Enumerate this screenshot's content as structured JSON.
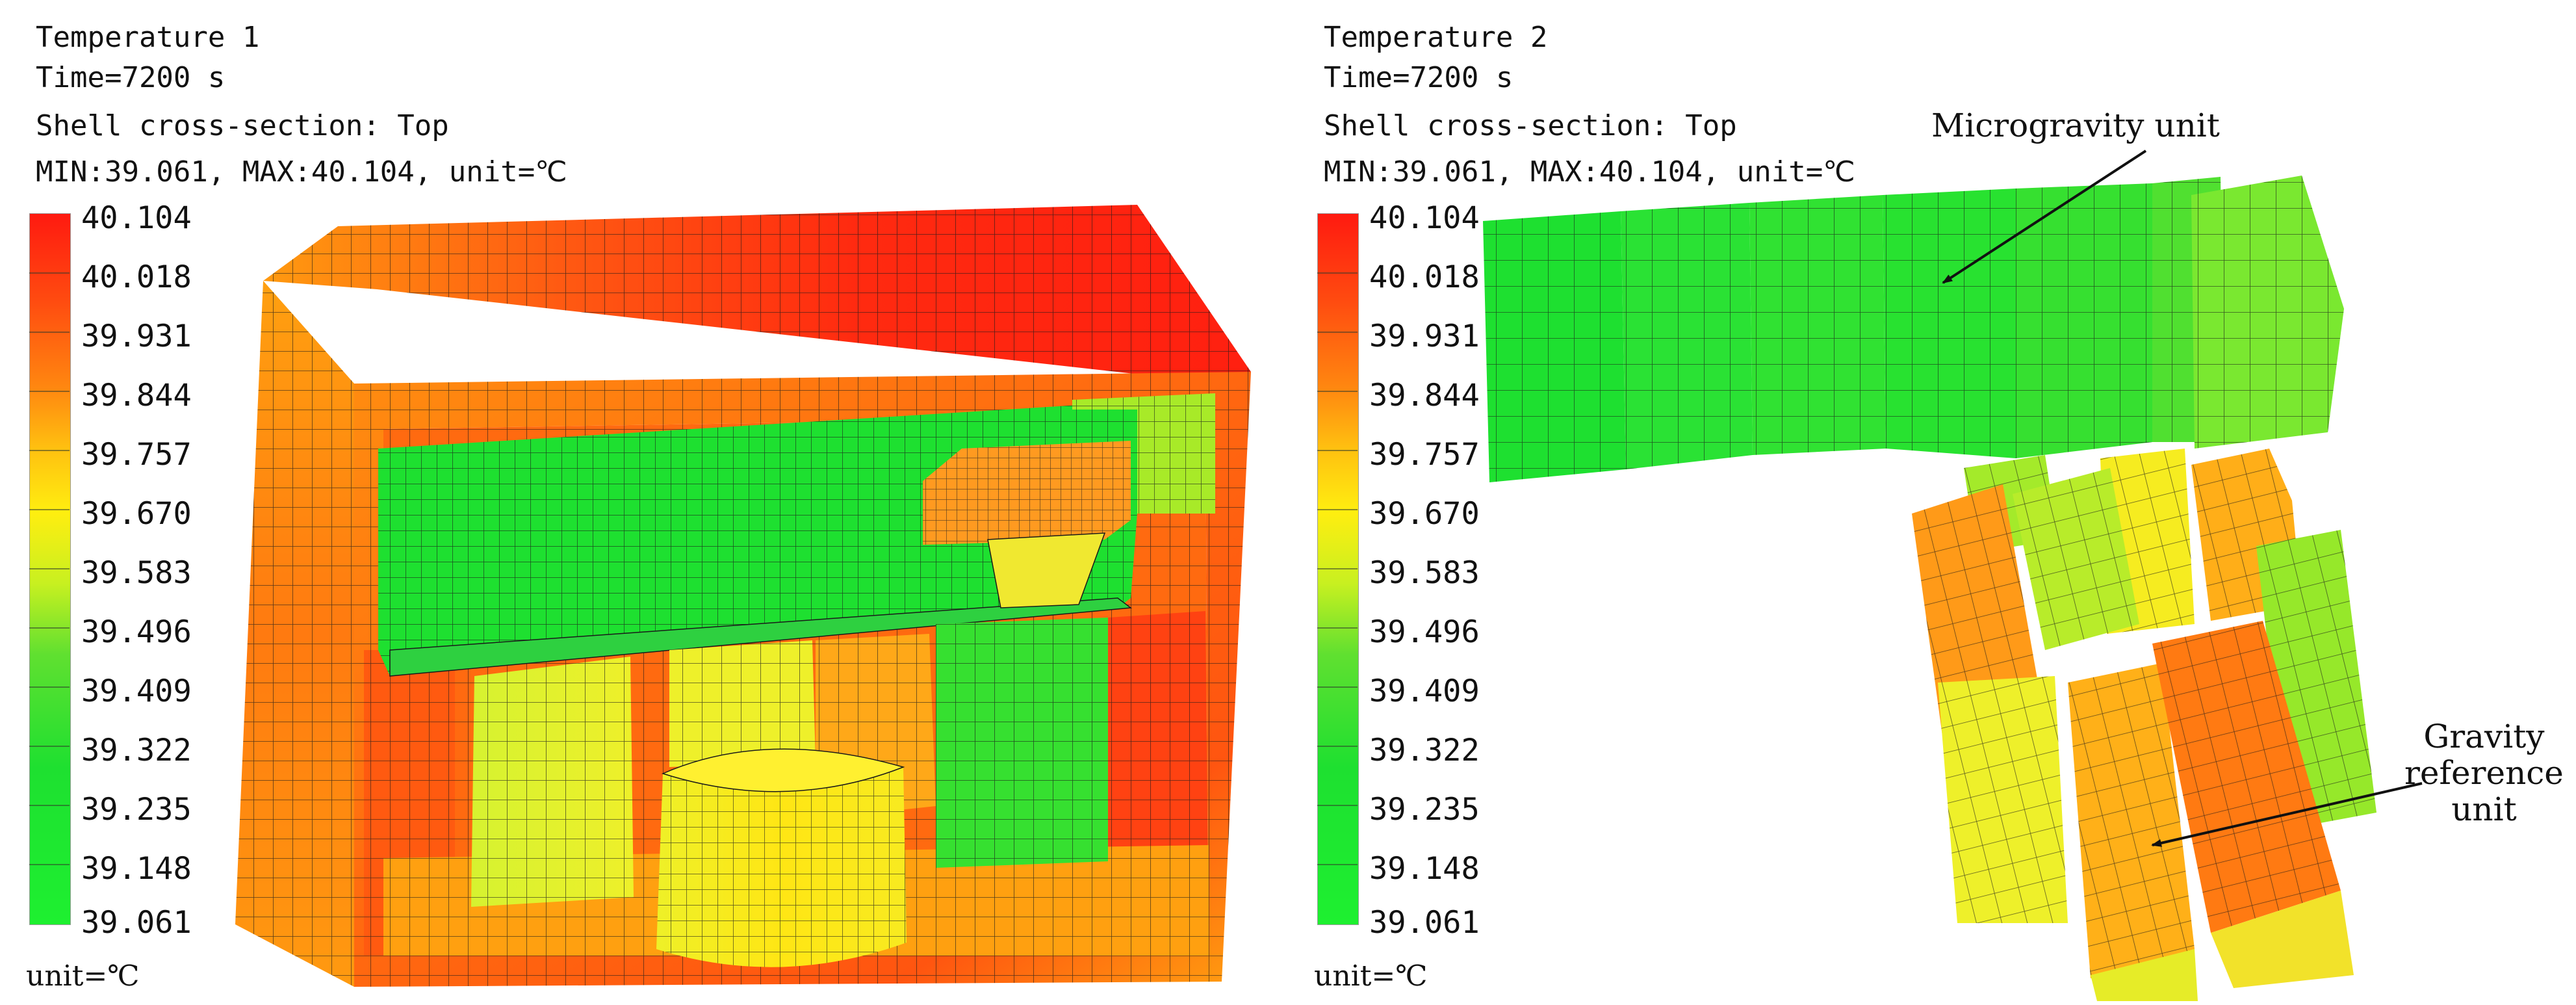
{
  "panels": [
    {
      "title": "Temperature 1",
      "time": "Time=7200 s",
      "section": "Shell cross-section: Top",
      "range": "MIN:39.061, MAX:40.104, unit=℃",
      "legend_values": [
        "40.104",
        "40.018",
        "39.931",
        "39.844",
        "39.757",
        "39.670",
        "39.583",
        "39.496",
        "39.409",
        "39.322",
        "39.235",
        "39.148",
        "39.061"
      ],
      "unit_label": "unit=℃"
    },
    {
      "title": "Temperature 2",
      "time": "Time=7200 s",
      "section": "Shell cross-section: Top",
      "range": "MIN:39.061, MAX:40.104, unit=℃",
      "legend_values": [
        "40.104",
        "40.018",
        "39.931",
        "39.844",
        "39.757",
        "39.670",
        "39.583",
        "39.496",
        "39.409",
        "39.322",
        "39.235",
        "39.148",
        "39.061"
      ],
      "unit_label": "unit=℃",
      "annotations": {
        "microgravity": "Microgravity unit",
        "gravity_line1": "Gravity",
        "gravity_line2": "reference",
        "gravity_line3": "unit"
      }
    }
  ],
  "colors": {
    "hot": "#ff2a10",
    "warm": "#ff7a10",
    "mid": "#ffd010",
    "cool": "#1ee030",
    "mesh": "#1a1a1a"
  }
}
